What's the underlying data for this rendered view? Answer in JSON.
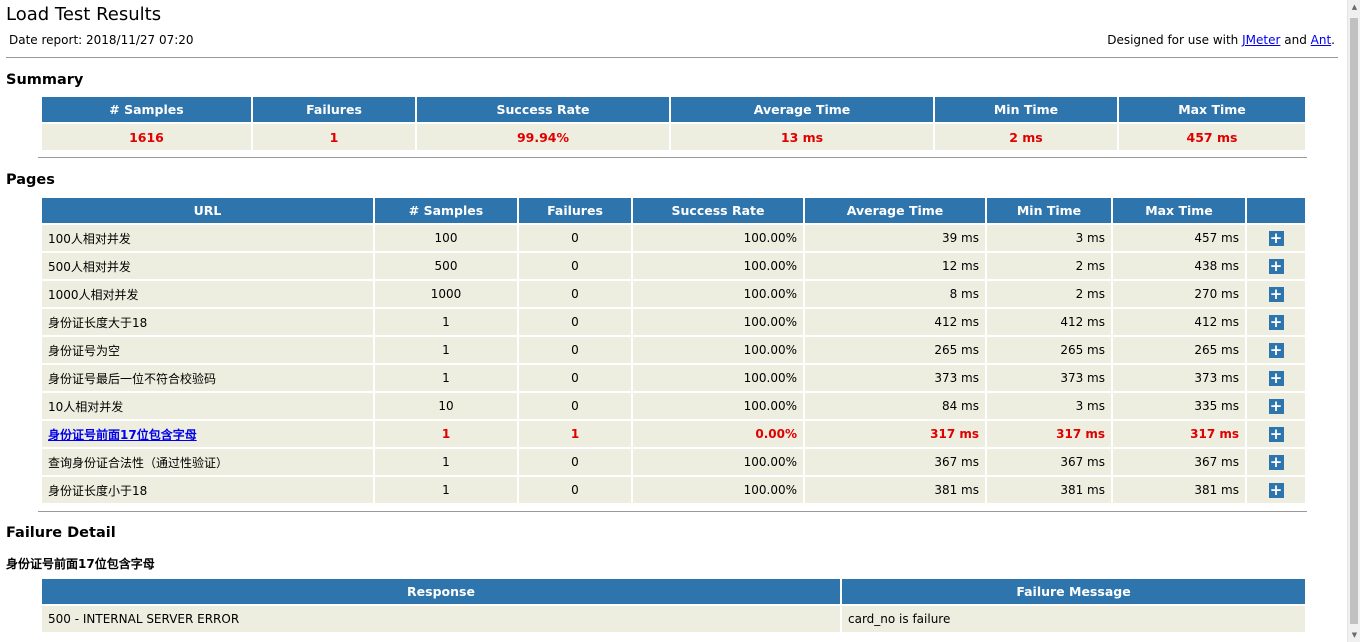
{
  "header": {
    "title": "Load Test Results",
    "date_report": "Date report: 2018/11/27 07:20",
    "designed_prefix": "Designed for use with",
    "jmeter_link": "JMeter",
    "and_text": "and",
    "ant_link": "Ant",
    "period": "."
  },
  "summary": {
    "heading": "Summary",
    "columns": [
      "# Samples",
      "Failures",
      "Success Rate",
      "Average Time",
      "Min Time",
      "Max Time"
    ],
    "values": [
      "1616",
      "1",
      "99.94%",
      "13 ms",
      "2 ms",
      "457 ms"
    ]
  },
  "pages": {
    "heading": "Pages",
    "columns": [
      "URL",
      "# Samples",
      "Failures",
      "Success Rate",
      "Average Time",
      "Min Time",
      "Max Time",
      ""
    ],
    "rows": [
      {
        "url": "100人相对并发",
        "samples": "100",
        "failures": "0",
        "rate": "100.00%",
        "avg": "39 ms",
        "min": "3 ms",
        "max": "457 ms",
        "failed": false
      },
      {
        "url": "500人相对并发",
        "samples": "500",
        "failures": "0",
        "rate": "100.00%",
        "avg": "12 ms",
        "min": "2 ms",
        "max": "438 ms",
        "failed": false
      },
      {
        "url": "1000人相对并发",
        "samples": "1000",
        "failures": "0",
        "rate": "100.00%",
        "avg": "8 ms",
        "min": "2 ms",
        "max": "270 ms",
        "failed": false
      },
      {
        "url": "身份证长度大于18",
        "samples": "1",
        "failures": "0",
        "rate": "100.00%",
        "avg": "412 ms",
        "min": "412 ms",
        "max": "412 ms",
        "failed": false
      },
      {
        "url": "身份证号为空",
        "samples": "1",
        "failures": "0",
        "rate": "100.00%",
        "avg": "265 ms",
        "min": "265 ms",
        "max": "265 ms",
        "failed": false
      },
      {
        "url": "身份证号最后一位不符合校验码",
        "samples": "1",
        "failures": "0",
        "rate": "100.00%",
        "avg": "373 ms",
        "min": "373 ms",
        "max": "373 ms",
        "failed": false
      },
      {
        "url": "10人相对并发",
        "samples": "10",
        "failures": "0",
        "rate": "100.00%",
        "avg": "84 ms",
        "min": "3 ms",
        "max": "335 ms",
        "failed": false
      },
      {
        "url": "身份证号前面17位包含字母",
        "samples": "1",
        "failures": "1",
        "rate": "0.00%",
        "avg": "317 ms",
        "min": "317 ms",
        "max": "317 ms",
        "failed": true
      },
      {
        "url": "查询身份证合法性（通过性验证）",
        "samples": "1",
        "failures": "0",
        "rate": "100.00%",
        "avg": "367 ms",
        "min": "367 ms",
        "max": "367 ms",
        "failed": false
      },
      {
        "url": "身份证长度小于18",
        "samples": "1",
        "failures": "0",
        "rate": "100.00%",
        "avg": "381 ms",
        "min": "381 ms",
        "max": "381 ms",
        "failed": false
      }
    ],
    "expand_icon": "plus-icon",
    "expand_symbol": "+"
  },
  "failure_detail": {
    "heading": "Failure Detail",
    "name": "身份证号前面17位包含字母",
    "columns": [
      "Response",
      "Failure Message"
    ],
    "rows": [
      {
        "response": "500 - INTERNAL SERVER ERROR",
        "message": "card_no is failure"
      }
    ]
  },
  "colors": {
    "header_bg": "#2e74ad",
    "cell_bg": "#eeeee0",
    "error_text": "#e10000",
    "link": "#0000ee"
  }
}
